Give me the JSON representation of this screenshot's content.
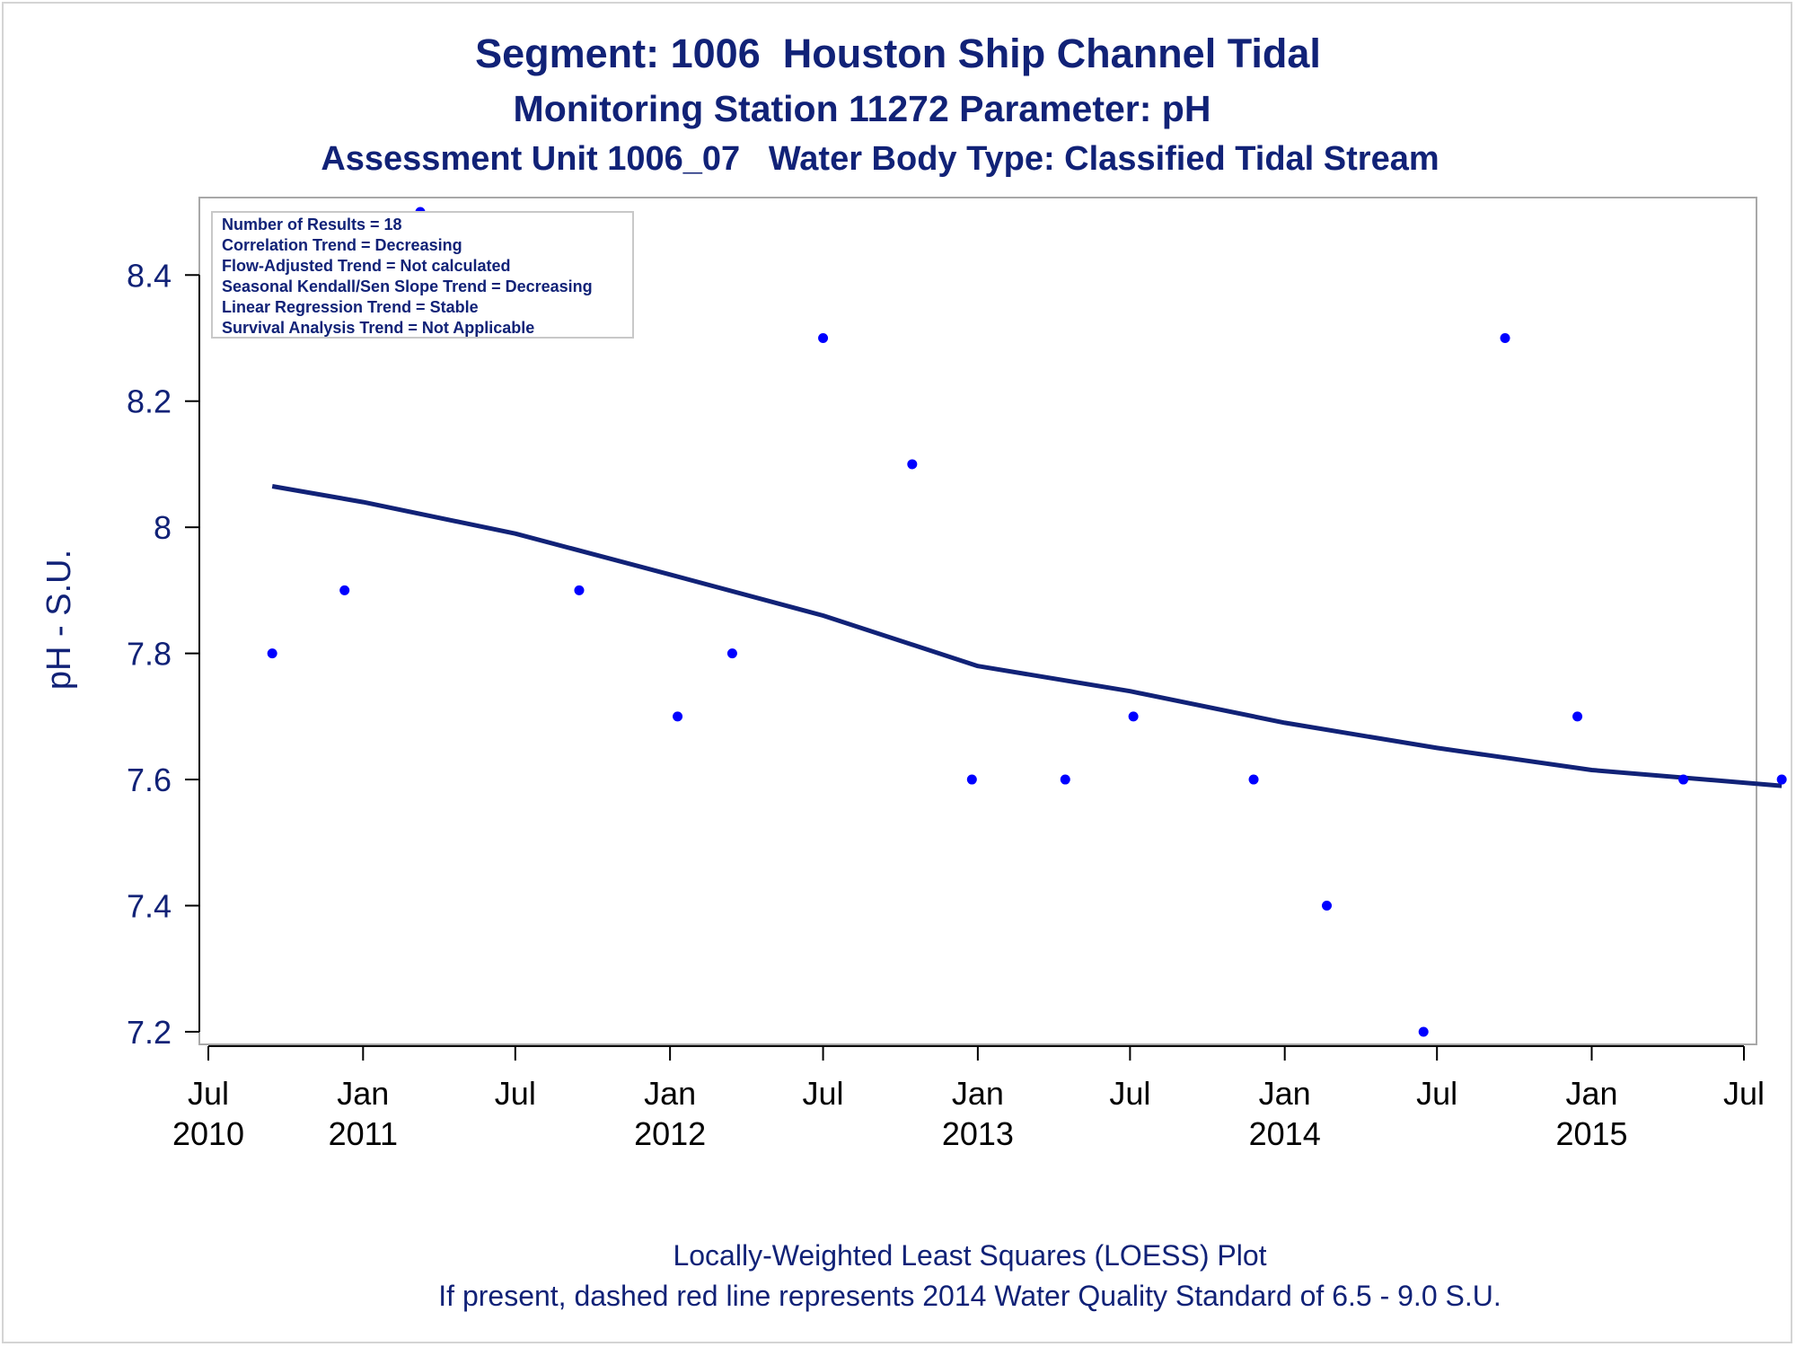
{
  "titles": {
    "line1": "Segment: 1006  Houston Ship Channel Tidal",
    "line2": "Monitoring Station 11272 Parameter: pH",
    "line3": "Assessment Unit 1006_07   Water Body Type: Classified Tidal Stream"
  },
  "footnotes": {
    "line1": "Locally-Weighted Least Squares (LOESS) Plot",
    "line2": "If present, dashed red line represents 2014 Water Quality Standard of 6.5 - 9.0 S.U."
  },
  "stats_box": [
    "Number of Results = 18",
    "Correlation Trend = Decreasing",
    "Flow-Adjusted Trend = Not calculated",
    "Seasonal Kendall/Sen Slope Trend = Decreasing",
    "Linear Regression Trend = Stable",
    "Survival Analysis Trend = Not Applicable"
  ],
  "colors": {
    "points": "#0000ff",
    "loess_line": "#112277",
    "text": "#112277",
    "axis": "#000000",
    "frame": "#a8a8a8"
  },
  "chart_data": {
    "type": "scatter",
    "ylabel": "pH - S.U.",
    "xlabel": "",
    "ylim": [
      7.18,
      8.52
    ],
    "xlim": [
      "2010-07-01",
      "2015-07-01"
    ],
    "y_ticks": [
      "7.2",
      "7.4",
      "7.6",
      "7.8",
      "8",
      "8.2",
      "8.4"
    ],
    "x_ticks": [
      {
        "date": "2010-07-01",
        "month": "Jul",
        "year": "2010"
      },
      {
        "date": "2011-01-01",
        "month": "Jan",
        "year": "2011"
      },
      {
        "date": "2011-07-01",
        "month": "Jul",
        "year": ""
      },
      {
        "date": "2012-01-01",
        "month": "Jan",
        "year": "2012"
      },
      {
        "date": "2012-07-01",
        "month": "Jul",
        "year": ""
      },
      {
        "date": "2013-01-01",
        "month": "Jan",
        "year": "2013"
      },
      {
        "date": "2013-07-01",
        "month": "Jul",
        "year": ""
      },
      {
        "date": "2014-01-01",
        "month": "Jan",
        "year": "2014"
      },
      {
        "date": "2014-07-01",
        "month": "Jul",
        "year": ""
      },
      {
        "date": "2015-01-01",
        "month": "Jan",
        "year": "2015"
      },
      {
        "date": "2015-07-01",
        "month": "Jul",
        "year": ""
      }
    ],
    "series": [
      {
        "kind": "points",
        "points": [
          {
            "x": "2010-09-15",
            "y": 7.8
          },
          {
            "x": "2010-12-10",
            "y": 7.9
          },
          {
            "x": "2011-03-10",
            "y": 8.5
          },
          {
            "x": "2011-09-15",
            "y": 7.9
          },
          {
            "x": "2012-01-10",
            "y": 7.7
          },
          {
            "x": "2012-03-15",
            "y": 7.8
          },
          {
            "x": "2012-07-01",
            "y": 8.3
          },
          {
            "x": "2012-10-15",
            "y": 8.1
          },
          {
            "x": "2012-12-25",
            "y": 7.6
          },
          {
            "x": "2013-04-15",
            "y": 7.6
          },
          {
            "x": "2013-07-05",
            "y": 7.7
          },
          {
            "x": "2013-11-25",
            "y": 7.6
          },
          {
            "x": "2014-02-20",
            "y": 7.4
          },
          {
            "x": "2014-06-15",
            "y": 7.2
          },
          {
            "x": "2014-09-20",
            "y": 8.3
          },
          {
            "x": "2014-12-15",
            "y": 7.7
          },
          {
            "x": "2015-04-20",
            "y": 7.6
          },
          {
            "x": "2015-08-15",
            "y": 7.6
          }
        ]
      },
      {
        "kind": "loess",
        "points": [
          {
            "x": "2010-09-15",
            "y": 8.065
          },
          {
            "x": "2011-01-01",
            "y": 8.04
          },
          {
            "x": "2011-07-01",
            "y": 7.99
          },
          {
            "x": "2012-01-01",
            "y": 7.925
          },
          {
            "x": "2012-07-01",
            "y": 7.86
          },
          {
            "x": "2013-01-01",
            "y": 7.78
          },
          {
            "x": "2013-07-01",
            "y": 7.74
          },
          {
            "x": "2014-01-01",
            "y": 7.69
          },
          {
            "x": "2014-07-01",
            "y": 7.65
          },
          {
            "x": "2015-01-01",
            "y": 7.615
          },
          {
            "x": "2015-08-15",
            "y": 7.59
          }
        ]
      }
    ]
  }
}
